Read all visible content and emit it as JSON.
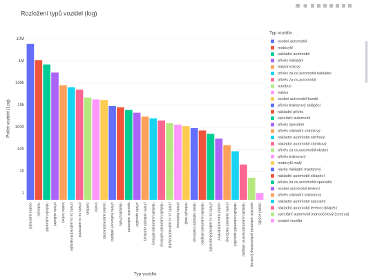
{
  "chart_data": {
    "type": "bar",
    "title": "Rozložení typů vozidel (log)",
    "x_label": "Typ vozidla",
    "y_label": "Počet vozidel (Log)",
    "legend_title": "Typ vozidla",
    "log_y": true,
    "grid": true,
    "legend": "right",
    "categories": [
      "osobní automobil",
      "motocykl",
      "nákladní automobil",
      "přívěs nákladní",
      "traktor kolový",
      "přívěs za os.automobil-nákladní",
      "přívěs za os.automobil",
      "autobus",
      "traktor",
      "osobní automobil-kombi",
      "přívěs traktorový sklápěcí",
      "nákladní přívěs",
      "speciální automobil",
      "přívěs speciální",
      "přívěs nákladní valníkový",
      "nákladní automobil skříňový",
      "nákladní automobil valníkový",
      "přívěs za os.automobil-obytný",
      "přívěs traktorový",
      "motocykl malý",
      "návěs nákladní traktorový",
      "nákladní automobil sklápěcí",
      "přívěs za os.automobil-speciální",
      "osobní automobil-terénní",
      "přívěs nákladní traktorový",
      "nákladní automobil speciální",
      "nákladní automobil terénní sklápěcí",
      "speciální automobil jednoúčelový (cest.sa)",
      "ostatní vozidla"
    ],
    "values": [
      6000000,
      1100000,
      700000,
      300000,
      80000,
      65000,
      50000,
      22000,
      18000,
      17000,
      9000,
      8000,
      6000,
      4500,
      3000,
      2500,
      2000,
      1500,
      1300,
      1100,
      900,
      700,
      500,
      300,
      150,
      80,
      20,
      5,
      1
    ],
    "colors": [
      "#636efa",
      "#EF553B",
      "#00cc96",
      "#ab63fa",
      "#FFA15A",
      "#19d3f3",
      "#FF6692",
      "#B6E880",
      "#FF97FF",
      "#FECB52",
      "#636efa",
      "#EF553B",
      "#00cc96",
      "#ab63fa",
      "#FFA15A",
      "#19d3f3",
      "#FF6692",
      "#B6E880",
      "#FF97FF",
      "#FECB52",
      "#636efa",
      "#EF553B",
      "#00cc96",
      "#ab63fa",
      "#FFA15A",
      "#19d3f3",
      "#FF6692",
      "#B6E880",
      "#FF97FF"
    ],
    "ylim": [
      0.5,
      14000000
    ],
    "yticks": [
      1,
      10,
      100,
      1000,
      {
        "value": 10000,
        "label": "10k"
      },
      {
        "value": 100000,
        "label": "100k"
      },
      {
        "value": 1000000,
        "label": "1M"
      },
      {
        "value": 10000000,
        "label": "10M"
      }
    ]
  }
}
